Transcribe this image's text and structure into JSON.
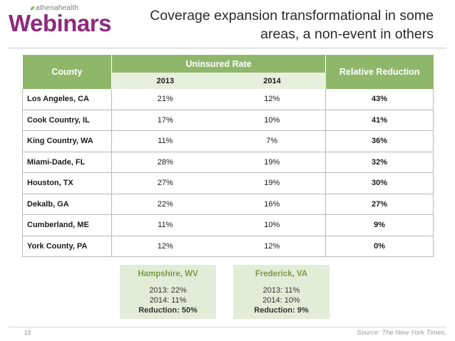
{
  "brand": {
    "sub": "athenahealth",
    "word": "Webinars",
    "color": "#8e2a7e"
  },
  "title": {
    "line1": "Coverage expansion transformational in some",
    "line2": "areas, a non-event in others"
  },
  "table": {
    "headers": {
      "county": "County",
      "uninsured": "Uninsured Rate",
      "year1": "2013",
      "year2": "2014",
      "relative": "Relative Reduction"
    },
    "rows": [
      {
        "county": "Los Angeles, CA",
        "y2013": "21%",
        "y2014": "12%",
        "relative": "43%"
      },
      {
        "county": "Cook Country, IL",
        "y2013": "17%",
        "y2014": "10%",
        "relative": "41%"
      },
      {
        "county": "King Country, WA",
        "y2013": "11%",
        "y2014": "7%",
        "relative": "36%"
      },
      {
        "county": "Miami-Dade, FL",
        "y2013": "28%",
        "y2014": "19%",
        "relative": "32%"
      },
      {
        "county": "Houston, TX",
        "y2013": "27%",
        "y2014": "19%",
        "relative": "30%"
      },
      {
        "county": "Dekalb, GA",
        "y2013": "22%",
        "y2014": "16%",
        "relative": "27%"
      },
      {
        "county": "Cumberland, ME",
        "y2013": "11%",
        "y2014": "10%",
        "relative": "9%"
      },
      {
        "county": "York County, PA",
        "y2013": "12%",
        "y2014": "12%",
        "relative": "0%"
      }
    ],
    "header_color": "#8fb76a"
  },
  "callouts": [
    {
      "name": "Hampshire, WV",
      "line1": "2013: 22%",
      "line2": "2014: 11%",
      "reduction": "Reduction: 50%"
    },
    {
      "name": "Frederick, VA",
      "line1": "2013: 11%",
      "line2": "2014: 10%",
      "reduction": "Reduction: 9%"
    }
  ],
  "footer": {
    "page": "13",
    "source": "Source: The New York Times."
  }
}
